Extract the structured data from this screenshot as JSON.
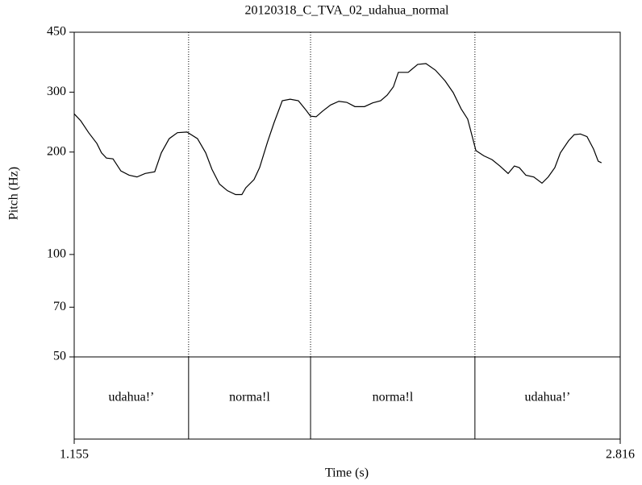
{
  "chart_data": {
    "type": "line",
    "title": "20120318_C_TVA_02_udahua_normal",
    "xlabel": "Time (s)",
    "ylabel": "Pitch (Hz)",
    "xlim": [
      1.155,
      2.816
    ],
    "xticks": [
      1.155,
      2.816
    ],
    "ylim": [
      50,
      450
    ],
    "yticks": [
      50,
      70,
      100,
      200,
      300,
      450
    ],
    "log_y": true,
    "color": "#000000",
    "x": [
      1.155,
      1.175,
      1.199,
      1.224,
      1.238,
      1.253,
      1.273,
      1.297,
      1.322,
      1.346,
      1.371,
      1.4,
      1.42,
      1.444,
      1.469,
      1.498,
      1.53,
      1.555,
      1.574,
      1.597,
      1.621,
      1.646,
      1.665,
      1.677,
      1.702,
      1.719,
      1.743,
      1.763,
      1.788,
      1.812,
      1.837,
      1.857,
      1.874,
      1.891,
      1.911,
      1.935,
      1.96,
      1.984,
      2.009,
      2.038,
      2.063,
      2.087,
      2.107,
      2.126,
      2.141,
      2.171,
      2.2,
      2.225,
      2.254,
      2.283,
      2.308,
      2.332,
      2.352,
      2.377,
      2.401,
      2.426,
      2.45,
      2.475,
      2.494,
      2.509,
      2.529,
      2.553,
      2.578,
      2.597,
      2.617,
      2.634,
      2.659,
      2.676,
      2.695,
      2.715,
      2.735,
      2.749,
      2.759
    ],
    "values": [
      259,
      247,
      228,
      212,
      199,
      192,
      191,
      176,
      171,
      169,
      173,
      175,
      199,
      219,
      228,
      229,
      219,
      199,
      178,
      161,
      154,
      150,
      150,
      157,
      166,
      180,
      214,
      244,
      283,
      286,
      283,
      268,
      255,
      254,
      264,
      275,
      282,
      280,
      272,
      272,
      279,
      283,
      294,
      311,
      343,
      343,
      362,
      364,
      348,
      324,
      299,
      268,
      250,
      202,
      195,
      190,
      182,
      173,
      182,
      180,
      171,
      169,
      162,
      169,
      180,
      199,
      216,
      225,
      226,
      222,
      204,
      188,
      186
    ],
    "textgrid": {
      "boundaries": [
        1.503,
        1.874,
        2.374
      ],
      "labels": [
        "udahua!’",
        "norma!l",
        "norma!l",
        "udahua!’"
      ]
    }
  }
}
